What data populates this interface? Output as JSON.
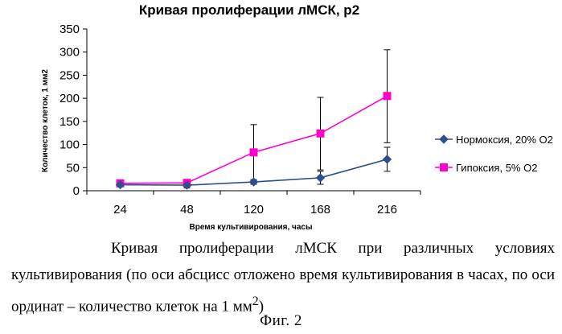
{
  "chart_data": {
    "type": "line",
    "title": "Кривая пролиферации лМСК, р2",
    "xlabel": "Время культивирования, часы",
    "ylabel": "Количество клеток, 1 мм2",
    "categories": [
      "24",
      "48",
      "120",
      "168",
      "216"
    ],
    "y_ticks": [
      "0",
      "50",
      "100",
      "150",
      "200",
      "250",
      "300",
      "350"
    ],
    "ylim": [
      0,
      350
    ],
    "grid": false,
    "legend_position": "right",
    "series": [
      {
        "name": "Нормоксия, 20% О2",
        "color": "#2e4f8e",
        "marker": "diamond",
        "values": [
          13,
          12,
          19,
          28,
          68
        ],
        "err_low": [
          13,
          6,
          14,
          14,
          42
        ],
        "err_high": [
          13,
          18,
          24,
          42,
          94
        ]
      },
      {
        "name": "Гипоксия, 5% О2",
        "color": "#ff00cc",
        "marker": "square",
        "values": [
          16,
          17,
          83,
          124,
          205
        ],
        "err_low": [
          16,
          11,
          22,
          45,
          104
        ],
        "err_high": [
          16,
          23,
          143,
          202,
          305
        ]
      }
    ]
  },
  "caption": {
    "text": "Кривая пролиферации лМСК при различных условиях культивирования (по оси абсцисс отложено время культивирования в часах, по оси ординат – количество клеток на 1 мм",
    "superscript": "2",
    "close": ")"
  },
  "figure_label": "Фиг. 2"
}
